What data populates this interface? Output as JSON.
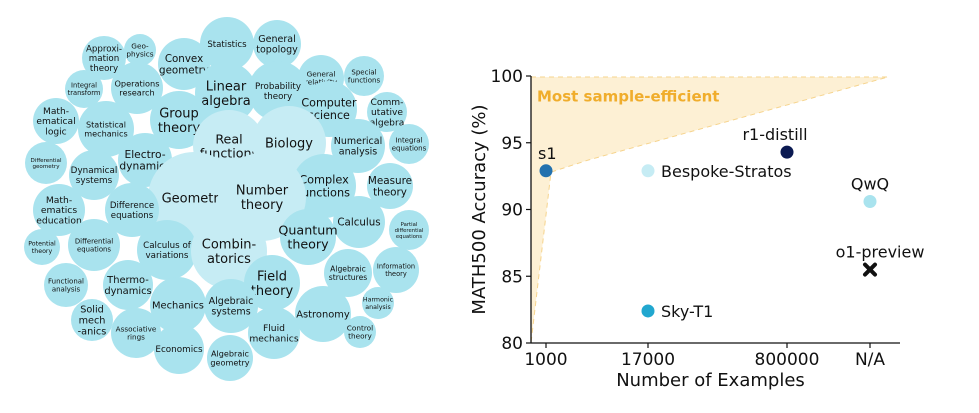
{
  "colors": {
    "bubble_fill": "#a9e3ee",
    "bubble_fill_big": "#c6ecf4",
    "region_fill": "#fdf0d4",
    "region_stroke": "#f6d48e",
    "region_label": "#f0ad2c",
    "axis": "#111111"
  },
  "chart_data": [
    {
      "type": "bubble",
      "bubbles": [
        {
          "label": "Geo-\nphysics",
          "size": 0.25
        },
        {
          "label": "Approxi-\nmation\ntheory",
          "size": 0.45
        },
        {
          "label": "Convex\ngeometry",
          "size": 0.6
        },
        {
          "label": "Statistics",
          "size": 0.6
        },
        {
          "label": "General\ntopology",
          "size": 0.55
        },
        {
          "label": "Integral\ntransform",
          "size": 0.4
        },
        {
          "label": "Operations\nresearch",
          "size": 0.6
        },
        {
          "label": "General\nrelativity",
          "size": 0.5
        },
        {
          "label": "Special\nfunctions",
          "size": 0.45
        },
        {
          "label": "Linear\nalgebra",
          "size": 0.65
        },
        {
          "label": "Probability\ntheory",
          "size": 0.65
        },
        {
          "label": "Math-\nematical\nlogic",
          "size": 0.5
        },
        {
          "label": "Statistical\nmechanics",
          "size": 0.6
        },
        {
          "label": "Group\ntheory",
          "size": 0.65
        },
        {
          "label": "Computer\nscience",
          "size": 0.6
        },
        {
          "label": "Comm-\nutative\nalgebra",
          "size": 0.45
        },
        {
          "label": "Real\nfunctions",
          "size": 0.75
        },
        {
          "label": "Biology",
          "size": 0.8
        },
        {
          "label": "Numerical\nanalysis",
          "size": 0.6
        },
        {
          "label": "Integral\nequations",
          "size": 0.45
        },
        {
          "label": "Differential\ngeometry",
          "size": 0.45
        },
        {
          "label": "Electro-\ndynamics",
          "size": 0.6
        },
        {
          "label": "Dynamical\nsystems",
          "size": 0.55
        },
        {
          "label": "Complex\nfunctions",
          "size": 0.65
        },
        {
          "label": "Measure\ntheory",
          "size": 0.5
        },
        {
          "label": "Geometry",
          "size": 1.0
        },
        {
          "label": "Number\ntheory",
          "size": 0.95
        },
        {
          "label": "Math-\nematics\neducation",
          "size": 0.55
        },
        {
          "label": "Difference\nequations",
          "size": 0.6
        },
        {
          "label": "Calculus",
          "size": 0.55
        },
        {
          "label": "Partial\ndifferential\nequations",
          "size": 0.45
        },
        {
          "label": "Potential\ntheory",
          "size": 0.4
        },
        {
          "label": "Differential\nequations",
          "size": 0.55
        },
        {
          "label": "Calculus of\nvariations",
          "size": 0.65
        },
        {
          "label": "Combin-\natorics",
          "size": 0.8
        },
        {
          "label": "Quantum\ntheory",
          "size": 0.6
        },
        {
          "label": "Algebraic\nstructures",
          "size": 0.55
        },
        {
          "label": "Information\ntheory",
          "size": 0.5
        },
        {
          "label": "Functional\nanalysis",
          "size": 0.45
        },
        {
          "label": "Thermo-\ndynamics",
          "size": 0.55
        },
        {
          "label": "Field\ntheory",
          "size": 0.6
        },
        {
          "label": "Solid\nmech\n-anics",
          "size": 0.45
        },
        {
          "label": "Mechanics",
          "size": 0.6
        },
        {
          "label": "Algebraic\nsystems",
          "size": 0.6
        },
        {
          "label": "Astronomy",
          "size": 0.55
        },
        {
          "label": "Harmonic\nanalysis",
          "size": 0.35
        },
        {
          "label": "Associative\nrings",
          "size": 0.55
        },
        {
          "label": "Fluid\nmechanics",
          "size": 0.55
        },
        {
          "label": "Control\ntheory",
          "size": 0.3
        },
        {
          "label": "Economics",
          "size": 0.55
        },
        {
          "label": "Algebraic\ngeometry",
          "size": 0.55
        }
      ]
    },
    {
      "type": "scatter",
      "xlabel": "Number of Examples",
      "ylabel": "MATH500 Accuracy (%)",
      "categories": [
        "1000",
        "17000",
        "800000",
        "N/A"
      ],
      "ylim": [
        80,
        100
      ],
      "yticks": [
        80,
        85,
        90,
        95,
        100
      ],
      "region_label": "Most sample-efficient",
      "points": [
        {
          "name": "s1",
          "x": "1000",
          "y": 92.9,
          "color": "#2371ae",
          "marker": "circle"
        },
        {
          "name": "Bespoke-Stratos",
          "x": "17000",
          "y": 92.9,
          "color": "#c6ecf4",
          "marker": "circle"
        },
        {
          "name": "r1-distill",
          "x": "800000",
          "y": 94.3,
          "color": "#0b1a52",
          "marker": "circle"
        },
        {
          "name": "QwQ",
          "x": "N/A",
          "y": 90.6,
          "color": "#a9e3ee",
          "marker": "circle"
        },
        {
          "name": "o1-preview",
          "x": "N/A",
          "y": 85.5,
          "color": "#111111",
          "marker": "x"
        },
        {
          "name": "Sky-T1",
          "x": "17000",
          "y": 82.4,
          "color": "#21a7cf",
          "marker": "circle"
        }
      ]
    }
  ]
}
